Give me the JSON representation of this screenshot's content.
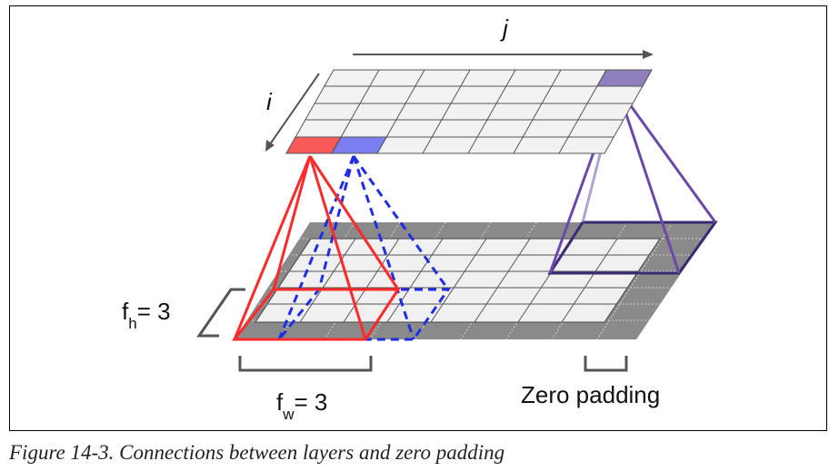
{
  "labels": {
    "j_axis": "j",
    "i_axis": "i",
    "fh_main": "f",
    "fh_sub": "h",
    "fh_value": "= 3",
    "fw_main": "f",
    "fw_sub": "w",
    "fw_value": "= 3",
    "zero_padding": "Zero padding"
  },
  "caption": "Figure 14-3. Connections between layers and zero padding",
  "colors": {
    "red_filter": "#ff2a2a",
    "blue_filter": "#1f2ee6",
    "purple_filter": "#6a4aa8",
    "dark_purple": "#3b2a72",
    "padding_gray": "#8a8a8a",
    "cell_fill": "#f2f2f2",
    "red_cell": "#f85a5a",
    "blue_cell": "#7b7ef0",
    "purple_cell": "#8f7fbf"
  },
  "grids": {
    "top_layer": {
      "rows": 5,
      "cols": 7
    },
    "bottom_layer": {
      "rows": 7,
      "cols": 9
    }
  }
}
